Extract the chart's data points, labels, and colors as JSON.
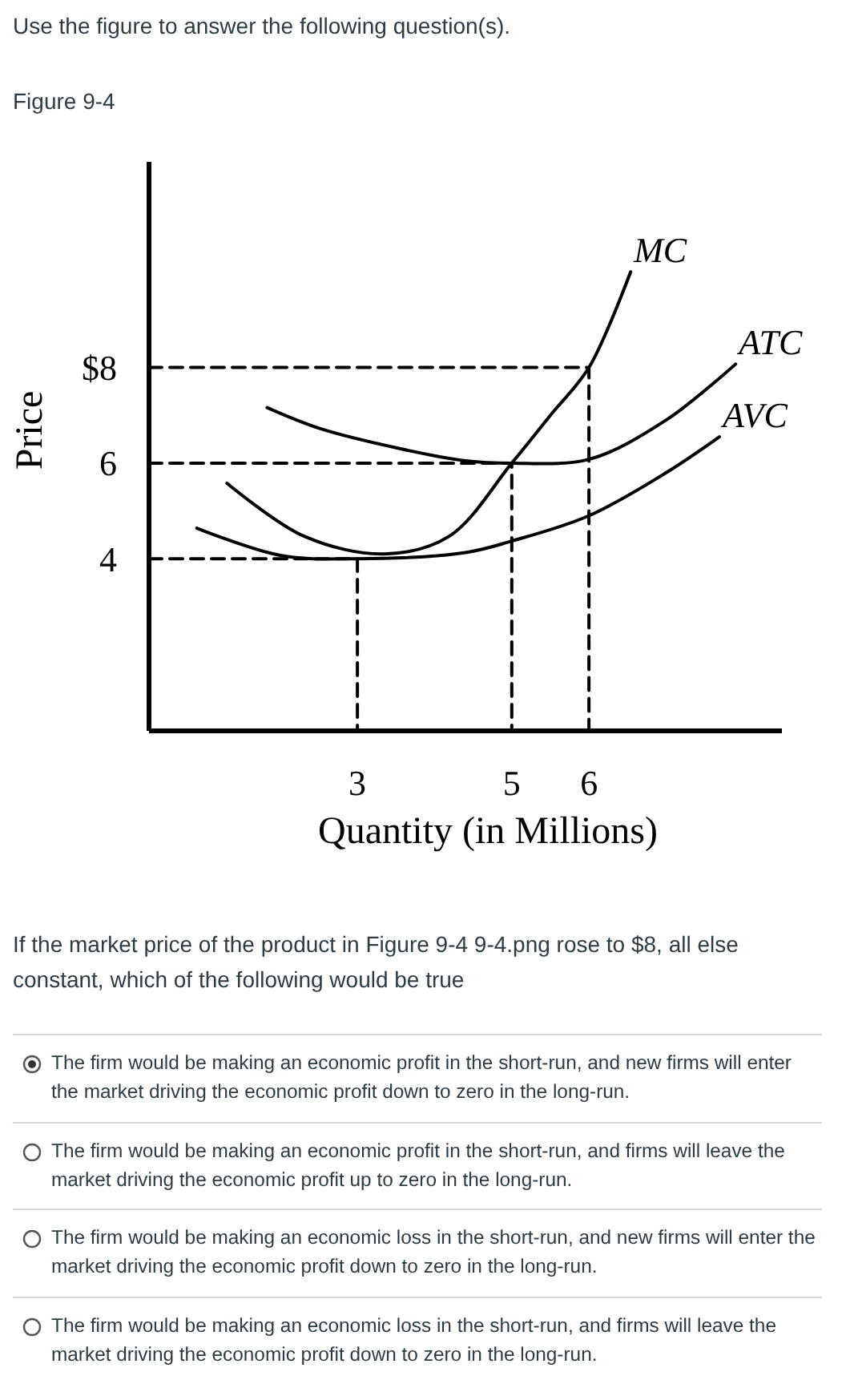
{
  "chart_data": {
    "type": "line",
    "xlabel": "Quantity (in Millions)",
    "ylabel": "Price",
    "xlim": [
      0.3,
      8.5
    ],
    "ylim": [
      0.4,
      12.3
    ],
    "xticks": [
      3,
      5,
      6
    ],
    "yticks": [
      {
        "value": 8,
        "label": "$8"
      },
      6,
      4
    ],
    "grid": false,
    "series": [
      {
        "name": "MC",
        "color": "#000000",
        "x": [
          1.31,
          2.31,
          3.35,
          4.19,
          5,
          5.5,
          6,
          6.54
        ],
        "values": [
          5.58,
          4.47,
          4.1,
          4.47,
          6,
          7,
          8,
          10
        ]
      },
      {
        "name": "ATC",
        "color": "#000000",
        "x": [
          1.83,
          2.52,
          3.56,
          4.4,
          5,
          6,
          7,
          7.9
        ],
        "values": [
          7.16,
          6.72,
          6.3,
          6.05,
          6,
          6.08,
          6.9,
          8.07
        ]
      },
      {
        "name": "AVC",
        "color": "#000000",
        "x": [
          0.92,
          2,
          3,
          4.4,
          5,
          6,
          7,
          7.69
        ],
        "values": [
          4.64,
          4.07,
          4,
          4.13,
          4.37,
          4.9,
          5.8,
          6.55
        ]
      },
      {
        "color": "#000000",
        "line_style": "dashed",
        "x": [
          0.3,
          6,
          6
        ],
        "values": [
          8,
          8,
          0.4
        ]
      },
      {
        "color": "#000000",
        "line_style": "dashed",
        "x": [
          0.3,
          5,
          5
        ],
        "values": [
          6,
          6,
          0.4
        ]
      },
      {
        "color": "#000000",
        "line_style": "dashed",
        "x": [
          0.3,
          3,
          3
        ],
        "values": [
          4,
          4,
          0.4
        ]
      }
    ],
    "annotations": [
      "Use the figure to answer the following question(s).",
      "Figure 9-4",
      "If the market price of the product in Figure 9-4 9-4.png  rose to $8, all else constant, which of the following would be true",
      "The firm would be making an economic profit in the short-run, and new firms will enter the market driving the economic profit down to zero in the long-run.",
      "The firm would be making an economic profit in the short-run, and firms will leave the market driving the economic profit up to zero in the long-run.",
      "The firm would be making an economic loss in the short-run, and new firms will enter the market driving the economic profit down to zero in the long-run.",
      "The firm would be making an economic loss in the short-run, and firms will leave the market driving the economic profit down to zero in the long-run."
    ]
  }
}
